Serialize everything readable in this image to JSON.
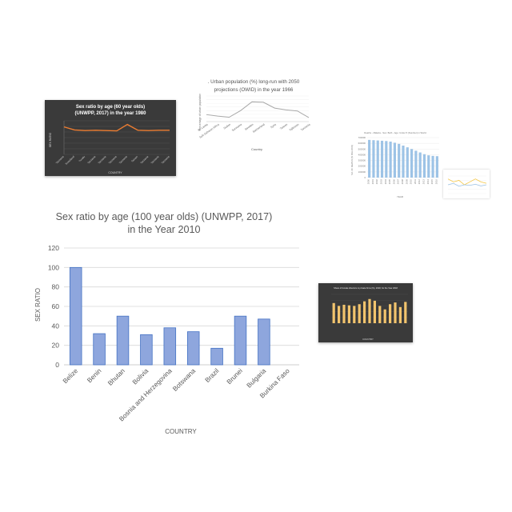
{
  "chart_data": [
    {
      "type": "bar",
      "title_line1": "Sex ratio by age (100 year olds) (UNWPP, 2017)",
      "title_line2": "in the Year 2010",
      "xlabel": "COUNTRY",
      "ylabel": "SEX RATIO",
      "categories": [
        "Belize",
        "Benin",
        "Bhutan",
        "Bolivia",
        "Bosnia and Herzegovina",
        "Botswana",
        "Brazil",
        "Brunei",
        "Bulgaria",
        "Burkina Faso"
      ],
      "values": [
        100,
        32,
        50,
        31,
        38,
        34,
        17,
        50,
        47,
        0
      ],
      "ylim": [
        0,
        120
      ],
      "yticks": [
        "0",
        "20",
        "40",
        "60",
        "80",
        "100",
        "120"
      ],
      "grid": true,
      "bar_color": "#8ea6dd"
    },
    {
      "type": "line",
      "title_line1": "Sex ratio by age (60 year olds)",
      "title_line2": "(UNWPP, 2017) in the year 1980",
      "xlabel": "COUNTRY",
      "ylabel": "SEX RATIO",
      "categories": [
        "Tanzania",
        "Swaziland",
        "Tuvalu",
        "Tanzania",
        "Tanzania",
        "Tanzania",
        "Tanzania",
        "Taiwan",
        "Tanzania",
        "Tanzania",
        "Tanzania"
      ],
      "values": [
        90,
        80,
        78,
        79,
        78,
        77,
        98,
        79,
        78,
        79,
        79
      ],
      "ylim": [
        0,
        110
      ],
      "line_color": "#ed7d31"
    },
    {
      "type": "line",
      "title_line1": ". Urban population (%) long-run with 2050",
      "title_line2": "projections (OWID) in the year 1966",
      "xlabel": "Country",
      "ylabel": "Percentage of urban population",
      "categories": [
        "Sri Lanka",
        "Sub-Saharan Africa",
        "Sudan",
        "Suriname",
        "Sweden",
        "Switzerland",
        "Syria",
        "Taiwan",
        "Tajikistan",
        "Tanzania"
      ],
      "values": [
        19,
        15,
        12,
        30,
        54,
        53,
        37,
        32,
        29,
        11
      ],
      "ylim": [
        0,
        70
      ],
      "line_color": "#a8a8a8"
    },
    {
      "type": "bar",
      "title_line1": "Deaths - Malaria - Sex: Both - Age: Under 5 (Number) in World",
      "xlabel": "YEAR",
      "ylabel": "NO. OF DEATHS (IN MILLIONS)",
      "categories": [
        "2000",
        "2001",
        "2002",
        "2003",
        "2004",
        "2005",
        "2006",
        "2007",
        "2008",
        "2009",
        "2010",
        "2011",
        "2012",
        "2013",
        "2014",
        "2015",
        "2016"
      ],
      "values": [
        660000,
        655000,
        650000,
        645000,
        640000,
        630000,
        610000,
        590000,
        560000,
        530000,
        500000,
        470000,
        440000,
        410000,
        390000,
        380000,
        375000
      ],
      "yticks": [
        "0",
        "100000",
        "200000",
        "300000",
        "400000",
        "500000",
        "600000",
        "700000"
      ],
      "ylim": [
        0,
        700000
      ],
      "bar_color": "#9dc3e6"
    },
    {
      "type": "line",
      "series": [
        {
          "name": "",
          "values": [
            5,
            4,
            4.5,
            3,
            4,
            5,
            4,
            3.5
          ]
        },
        {
          "name": "",
          "values": [
            3,
            3.5,
            2.5,
            3,
            2.8,
            3.2,
            2.6,
            3
          ]
        }
      ],
      "line_colors": [
        "#f4c542",
        "#9dc3e6"
      ]
    },
    {
      "type": "bar",
      "title_line1": "Share of female directors in private firms (%), 2018, for the Year 2018",
      "xlabel": "COUNTRY",
      "values": [
        35,
        30,
        32,
        31,
        30,
        33,
        38,
        42,
        39,
        30,
        24,
        33,
        36,
        28,
        37
      ],
      "ylim": [
        0,
        50
      ],
      "bar_color": "#f2c46d"
    }
  ]
}
